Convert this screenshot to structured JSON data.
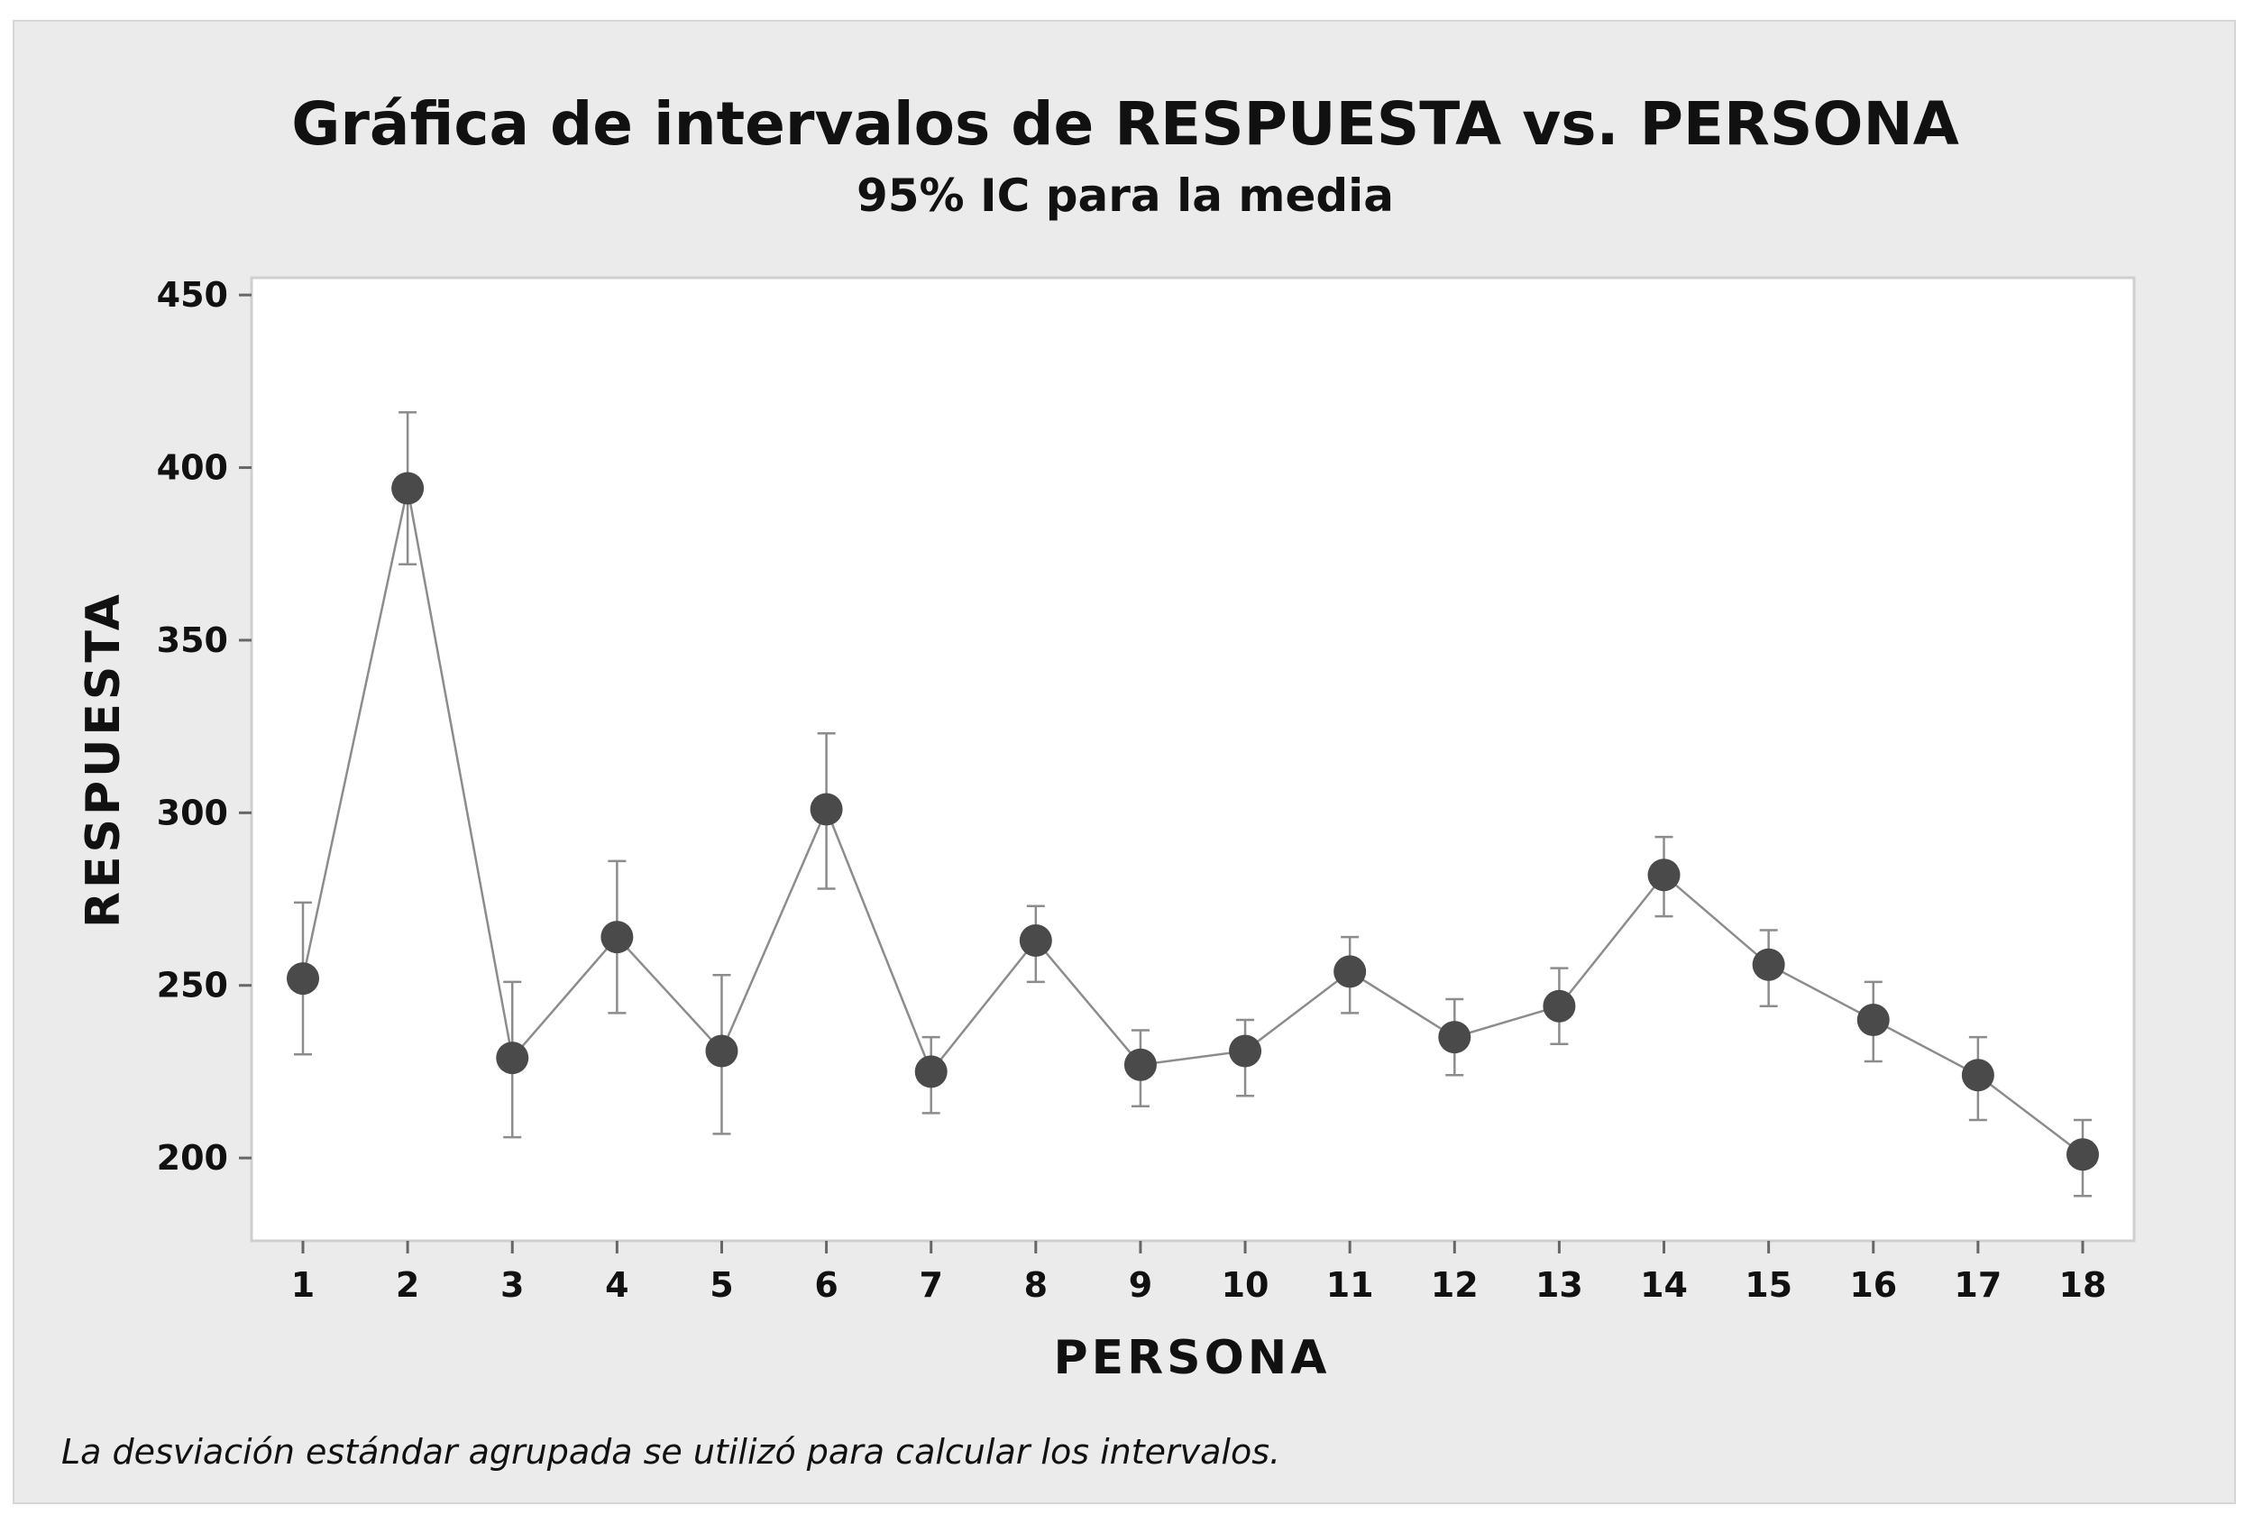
{
  "chart_data": {
    "type": "interval",
    "title": "Gráfica de intervalos de RESPUESTA vs. PERSONA",
    "subtitle": "95% IC para la media",
    "xlabel": "PERSONA",
    "ylabel": "RESPUESTA",
    "footnote": "La desviación estándar agrupada se utilizó para calcular los intervalos.",
    "categories": [
      "1",
      "2",
      "3",
      "4",
      "5",
      "6",
      "7",
      "8",
      "9",
      "10",
      "11",
      "12",
      "13",
      "14",
      "15",
      "16",
      "17",
      "18"
    ],
    "means": [
      252,
      394,
      229,
      264,
      231,
      301,
      225,
      263,
      227,
      231,
      254,
      235,
      244,
      282,
      256,
      240,
      224,
      201
    ],
    "lower": [
      230,
      372,
      206,
      242,
      207,
      278,
      213,
      251,
      215,
      218,
      242,
      224,
      233,
      270,
      244,
      228,
      211,
      189
    ],
    "upper": [
      274,
      416,
      251,
      286,
      253,
      323,
      235,
      273,
      237,
      240,
      264,
      246,
      255,
      293,
      266,
      251,
      235,
      211
    ],
    "yticks": [
      200,
      250,
      300,
      350,
      400,
      450
    ],
    "ylim": [
      176,
      455
    ],
    "grid": false,
    "colors": {
      "marker": "#4a4a4a",
      "line": "#8c8c8c",
      "errorbar": "#8c8c8c",
      "panel": "#ebebeb",
      "plot": "#ffffff"
    }
  }
}
